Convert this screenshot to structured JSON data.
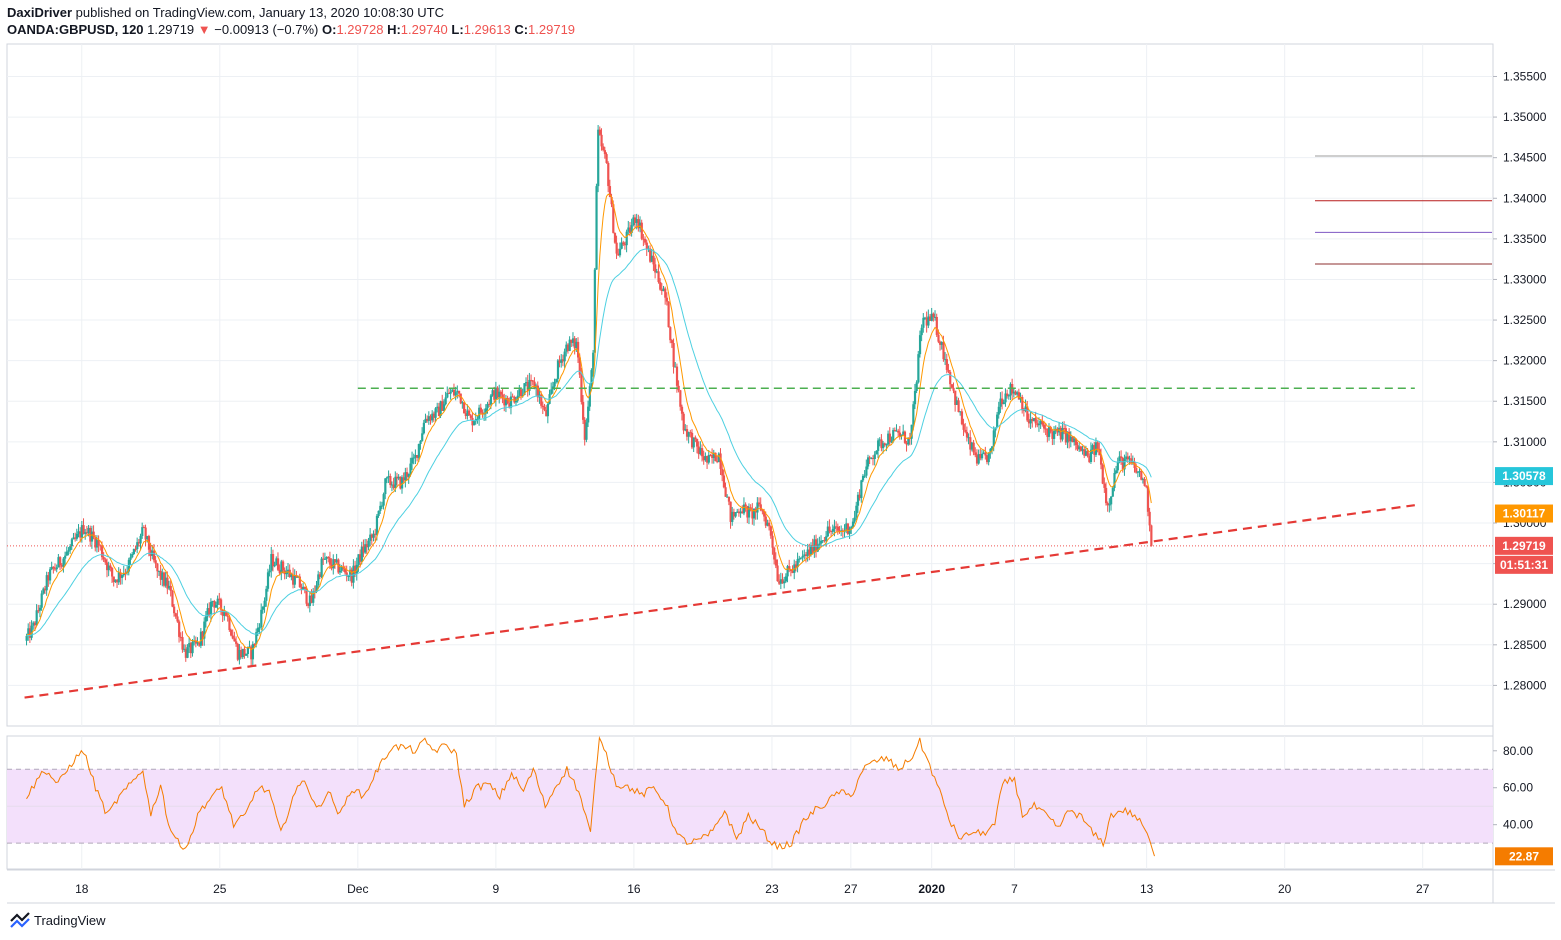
{
  "header": {
    "author": "DaxiDriver",
    "published": "published on TradingView.com, January 13, 2020 10:08:30 UTC"
  },
  "legend": {
    "symbol": "OANDA:GBPUSD, 120",
    "last": "1.29719",
    "change": "−0.00913 (−0.7%)",
    "o_label": "O:",
    "o": "1.29728",
    "h_label": "H:",
    "h": "1.29740",
    "l_label": "L:",
    "l": "1.29613",
    "c_label": "C:",
    "c": "1.29719"
  },
  "footer": {
    "brand": "TradingView"
  },
  "colors": {
    "up": "#26a69a",
    "down": "#ef5350",
    "ema_fast": "#ff9800",
    "ema_slow": "#4dd0e1",
    "trendline": "#e53935",
    "resistance": "#4caf50",
    "rsi_line": "#f57c00",
    "rsi_band": "#f3e0fb",
    "grid": "#edf0f4"
  },
  "chart_data": [
    {
      "type": "candlestick",
      "timeframe": "120",
      "price_axis": {
        "ylim": [
          1.275,
          1.359
        ],
        "ticks": [
          "1.35500",
          "1.35000",
          "1.34500",
          "1.34000",
          "1.33500",
          "1.33000",
          "1.32500",
          "1.32000",
          "1.31500",
          "1.31000",
          "1.30500",
          "1.30000",
          "1.29500",
          "1.29000",
          "1.28500",
          "1.28000"
        ]
      },
      "time_axis": {
        "labels": [
          {
            "t": 0.9,
            "label": "18"
          },
          {
            "t": 7.9,
            "label": "25"
          },
          {
            "t": 14.9,
            "label": "Dec"
          },
          {
            "t": 21.9,
            "label": "9"
          },
          {
            "t": 28.9,
            "label": "16"
          },
          {
            "t": 35.9,
            "label": "23"
          },
          {
            "t": 39.9,
            "label": "27"
          },
          {
            "t": 44.0,
            "label": "2020",
            "bold": true
          },
          {
            "t": 48.2,
            "label": "7"
          },
          {
            "t": 54.9,
            "label": "13"
          },
          {
            "t": 61.9,
            "label": "20"
          },
          {
            "t": 68.9,
            "label": "27"
          }
        ]
      },
      "price_path": [
        [
          -1.9,
          1.2855
        ],
        [
          -1.5,
          1.287
        ],
        [
          -0.7,
          1.2935
        ],
        [
          0.3,
          1.2965
        ],
        [
          1.1,
          1.2995
        ],
        [
          1.8,
          1.2975
        ],
        [
          2.6,
          1.293
        ],
        [
          3.3,
          1.2945
        ],
        [
          4.1,
          1.299
        ],
        [
          4.8,
          1.294
        ],
        [
          5.4,
          1.292
        ],
        [
          6.2,
          1.284
        ],
        [
          6.9,
          1.285
        ],
        [
          7.6,
          1.2905
        ],
        [
          8.3,
          1.289
        ],
        [
          8.9,
          1.284
        ],
        [
          9.6,
          1.284
        ],
        [
          10.2,
          1.29
        ],
        [
          10.6,
          1.2955
        ],
        [
          11.4,
          1.294
        ],
        [
          12.0,
          1.2925
        ],
        [
          12.6,
          1.29
        ],
        [
          13.2,
          1.2955
        ],
        [
          14.0,
          1.2945
        ],
        [
          14.7,
          1.2935
        ],
        [
          15.2,
          1.2965
        ],
        [
          15.8,
          1.2985
        ],
        [
          16.4,
          1.305
        ],
        [
          17.2,
          1.305
        ],
        [
          17.9,
          1.308
        ],
        [
          18.4,
          1.313
        ],
        [
          19.0,
          1.3135
        ],
        [
          19.6,
          1.316
        ],
        [
          20.1,
          1.316
        ],
        [
          20.7,
          1.3125
        ],
        [
          21.3,
          1.314
        ],
        [
          21.9,
          1.316
        ],
        [
          22.7,
          1.315
        ],
        [
          23.3,
          1.3165
        ],
        [
          24.0,
          1.317
        ],
        [
          24.5,
          1.313
        ],
        [
          25.1,
          1.319
        ],
        [
          25.6,
          1.322
        ],
        [
          26.1,
          1.322
        ],
        [
          26.5,
          1.3105
        ],
        [
          26.9,
          1.32
        ],
        [
          27.15,
          1.348
        ],
        [
          27.6,
          1.344
        ],
        [
          28.1,
          1.333
        ],
        [
          28.6,
          1.335
        ],
        [
          29.1,
          1.338
        ],
        [
          29.6,
          1.334
        ],
        [
          30.1,
          1.331
        ],
        [
          30.6,
          1.3275
        ],
        [
          31.0,
          1.32
        ],
        [
          31.5,
          1.312
        ],
        [
          32.1,
          1.3095
        ],
        [
          32.7,
          1.3075
        ],
        [
          33.3,
          1.3085
        ],
        [
          33.9,
          1.3005
        ],
        [
          34.4,
          1.302
        ],
        [
          34.9,
          1.301
        ],
        [
          35.4,
          1.302
        ],
        [
          35.9,
          1.299
        ],
        [
          36.3,
          1.293
        ],
        [
          36.9,
          1.294
        ],
        [
          37.5,
          1.2955
        ],
        [
          38.1,
          1.297
        ],
        [
          38.8,
          1.299
        ],
        [
          39.5,
          1.299
        ],
        [
          40.1,
          1.3
        ],
        [
          40.6,
          1.306
        ],
        [
          41.2,
          1.309
        ],
        [
          41.8,
          1.3105
        ],
        [
          42.4,
          1.311
        ],
        [
          43.0,
          1.31
        ],
        [
          43.6,
          1.325
        ],
        [
          44.2,
          1.325
        ],
        [
          44.8,
          1.32
        ],
        [
          45.3,
          1.315
        ],
        [
          45.9,
          1.31
        ],
        [
          46.5,
          1.3075
        ],
        [
          47.1,
          1.3085
        ],
        [
          47.5,
          1.315
        ],
        [
          48.0,
          1.3165
        ],
        [
          48.5,
          1.316
        ],
        [
          49.0,
          1.3125
        ],
        [
          49.6,
          1.312
        ],
        [
          50.2,
          1.311
        ],
        [
          50.8,
          1.311
        ],
        [
          51.4,
          1.3095
        ],
        [
          52.0,
          1.308
        ],
        [
          52.5,
          1.3095
        ],
        [
          53.0,
          1.302
        ],
        [
          53.5,
          1.3075
        ],
        [
          54.1,
          1.3075
        ],
        [
          54.6,
          1.306
        ],
        [
          54.9,
          1.305
        ],
        [
          55.3,
          1.2972
        ]
      ],
      "last_candle": {
        "o": 1.29728,
        "h": 1.2974,
        "l": 1.29613,
        "c": 1.29719
      },
      "ema_slow_last": 1.30578,
      "ema_fast_last": 1.30117,
      "trendline": {
        "p1": [
          -2.0,
          1.2785
        ],
        "p2": [
          68.5,
          1.3022
        ]
      },
      "resistance_level": {
        "price": 1.3166,
        "from_t": 14.9,
        "to_t": 68.5
      },
      "levels_right": [
        {
          "price": 1.3452,
          "color": "#9e9e9e"
        },
        {
          "price": 1.3397,
          "color": "#b71c1c"
        },
        {
          "price": 1.3358,
          "color": "#7e57c2"
        },
        {
          "price": 1.3319,
          "color": "#8d2f2f"
        }
      ],
      "price_labels": {
        "ema_slow": {
          "text": "1.30578",
          "bg": "#26c6da"
        },
        "ema_fast": {
          "text": "1.30117",
          "bg": "#ff9800"
        },
        "last_price": {
          "text": "1.29719",
          "bg": "#ef5350"
        },
        "countdown": {
          "text": "01:51:31",
          "bg": "#ef5350"
        }
      }
    },
    {
      "type": "line",
      "name": "RSI",
      "ylim": [
        16,
        88
      ],
      "ticks": [
        "80.00",
        "60.00",
        "40.00"
      ],
      "band": [
        30,
        70
      ],
      "last_value": 22.87,
      "last_label": "22.87",
      "path": [
        [
          -1.9,
          55
        ],
        [
          -1.0,
          70
        ],
        [
          -0.3,
          62
        ],
        [
          0.5,
          75
        ],
        [
          1.0,
          80
        ],
        [
          1.6,
          60
        ],
        [
          2.2,
          45
        ],
        [
          2.8,
          55
        ],
        [
          3.4,
          62
        ],
        [
          4.0,
          70
        ],
        [
          4.4,
          45
        ],
        [
          4.9,
          62
        ],
        [
          5.3,
          40
        ],
        [
          5.9,
          28
        ],
        [
          6.3,
          30
        ],
        [
          6.9,
          48
        ],
        [
          7.5,
          55
        ],
        [
          8.0,
          60
        ],
        [
          8.6,
          40
        ],
        [
          9.2,
          45
        ],
        [
          9.8,
          60
        ],
        [
          10.4,
          58
        ],
        [
          11.0,
          35
        ],
        [
          11.6,
          55
        ],
        [
          12.2,
          65
        ],
        [
          12.8,
          48
        ],
        [
          13.4,
          58
        ],
        [
          14.0,
          45
        ],
        [
          14.6,
          60
        ],
        [
          15.2,
          55
        ],
        [
          15.8,
          68
        ],
        [
          16.6,
          82
        ],
        [
          17.2,
          82
        ],
        [
          17.8,
          80
        ],
        [
          18.3,
          85
        ],
        [
          18.8,
          80
        ],
        [
          19.4,
          83
        ],
        [
          19.9,
          78
        ],
        [
          20.3,
          50
        ],
        [
          20.9,
          60
        ],
        [
          21.5,
          62
        ],
        [
          22.1,
          55
        ],
        [
          22.7,
          68
        ],
        [
          23.3,
          58
        ],
        [
          23.8,
          70
        ],
        [
          24.4,
          50
        ],
        [
          25.0,
          62
        ],
        [
          25.5,
          70
        ],
        [
          26.1,
          58
        ],
        [
          26.7,
          35
        ],
        [
          27.15,
          90
        ],
        [
          27.5,
          78
        ],
        [
          28.0,
          62
        ],
        [
          28.7,
          60
        ],
        [
          29.3,
          56
        ],
        [
          29.9,
          60
        ],
        [
          30.5,
          52
        ],
        [
          31.1,
          34
        ],
        [
          31.7,
          30
        ],
        [
          32.3,
          32
        ],
        [
          32.9,
          36
        ],
        [
          33.5,
          48
        ],
        [
          34.1,
          32
        ],
        [
          34.7,
          45
        ],
        [
          35.3,
          38
        ],
        [
          35.9,
          30
        ],
        [
          36.3,
          28
        ],
        [
          36.9,
          30
        ],
        [
          37.5,
          42
        ],
        [
          38.1,
          48
        ],
        [
          38.7,
          52
        ],
        [
          39.3,
          58
        ],
        [
          39.9,
          55
        ],
        [
          40.5,
          70
        ],
        [
          41.1,
          74
        ],
        [
          41.7,
          76
        ],
        [
          42.3,
          70
        ],
        [
          42.9,
          75
        ],
        [
          43.4,
          85
        ],
        [
          43.9,
          72
        ],
        [
          44.4,
          58
        ],
        [
          45.0,
          40
        ],
        [
          45.5,
          32
        ],
        [
          46.0,
          36
        ],
        [
          46.6,
          35
        ],
        [
          47.2,
          40
        ],
        [
          47.6,
          62
        ],
        [
          48.2,
          65
        ],
        [
          48.6,
          45
        ],
        [
          49.2,
          50
        ],
        [
          49.8,
          45
        ],
        [
          50.4,
          38
        ],
        [
          51.0,
          48
        ],
        [
          51.6,
          44
        ],
        [
          52.2,
          35
        ],
        [
          52.7,
          30
        ],
        [
          53.1,
          45
        ],
        [
          53.7,
          48
        ],
        [
          54.3,
          45
        ],
        [
          54.8,
          38
        ],
        [
          55.3,
          23
        ]
      ]
    }
  ]
}
